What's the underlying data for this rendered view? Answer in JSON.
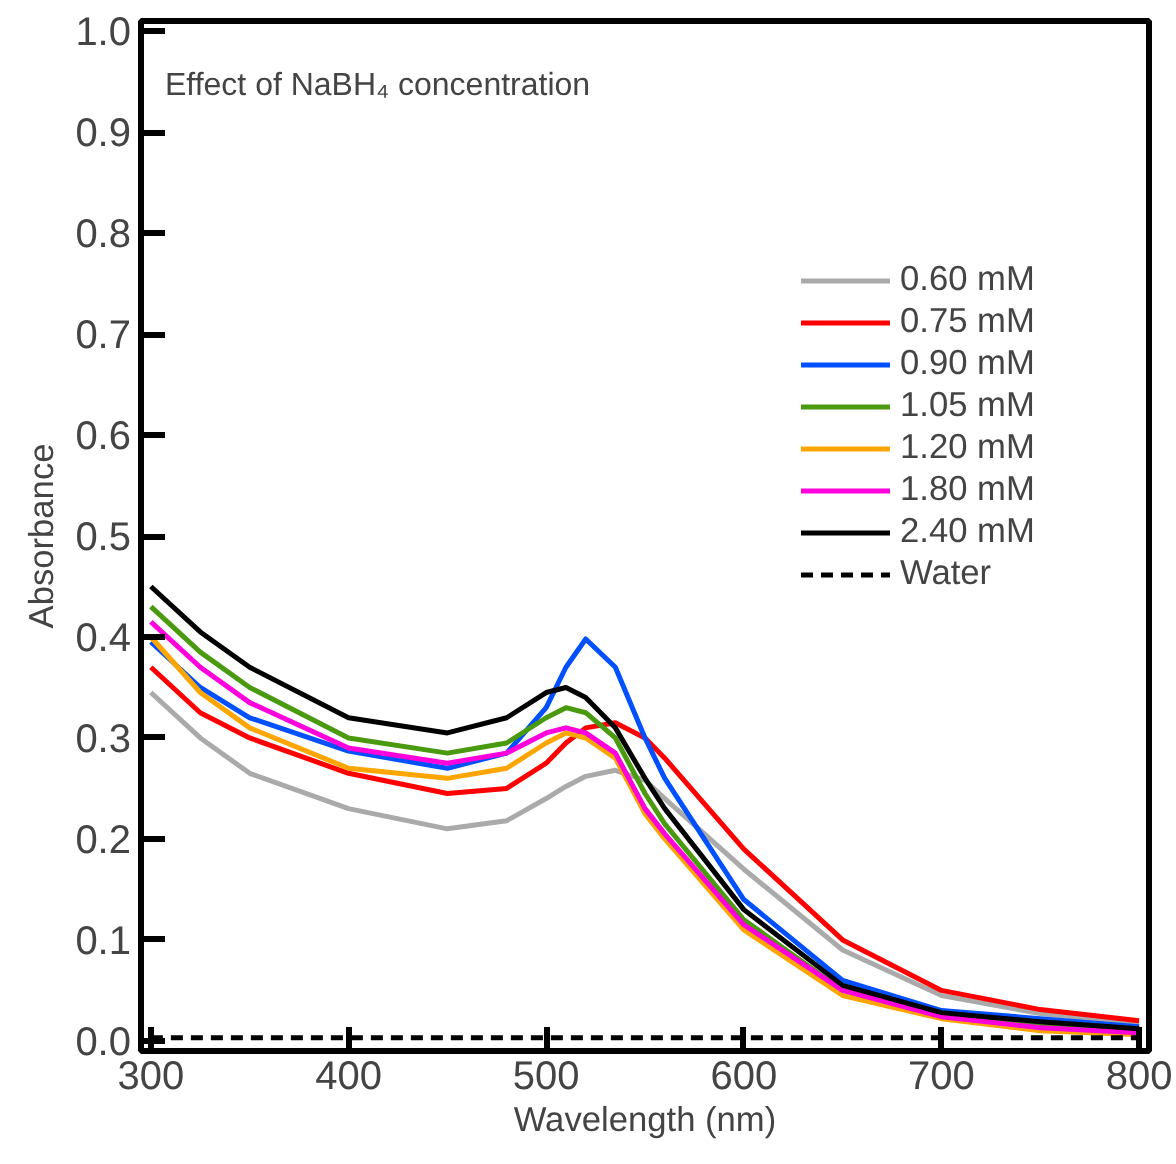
{
  "chart_data": {
    "type": "line",
    "annotations": [
      "Effect of NaBH₄ concentration"
    ],
    "xlabel": "Wavelength (nm)",
    "ylabel": "Absorbance",
    "xlim": [
      295,
      805
    ],
    "ylim": [
      -0.01,
      1.01
    ],
    "xticks": [
      300,
      400,
      500,
      600,
      700,
      800
    ],
    "yticks": [
      {
        "value": 0,
        "label": "0.0"
      },
      0.1,
      0.2,
      0.3,
      0.4,
      0.5,
      0.6,
      0.7,
      0.8,
      0.9,
      {
        "value": 1,
        "label": "1.0"
      }
    ],
    "grid": false,
    "legend": "top right",
    "marker": "none",
    "line_style": "solid",
    "x": [
      300,
      325,
      350,
      400,
      450,
      480,
      500,
      510,
      520,
      535,
      550,
      560,
      600,
      650,
      700,
      750,
      800
    ],
    "series": [
      {
        "name": "0.60 mM",
        "color": "#aaaaaa",
        "values": [
          0.345,
          0.3,
          0.265,
          0.23,
          0.21,
          0.218,
          0.24,
          0.252,
          0.262,
          0.268,
          0.258,
          0.24,
          0.17,
          0.09,
          0.045,
          0.027,
          0.017
        ]
      },
      {
        "name": "0.75 mM",
        "color": "#ff0000",
        "values": [
          0.37,
          0.325,
          0.3,
          0.265,
          0.245,
          0.25,
          0.275,
          0.295,
          0.31,
          0.315,
          0.3,
          0.28,
          0.19,
          0.1,
          0.05,
          0.031,
          0.02
        ]
      },
      {
        "name": "0.90 mM",
        "color": "#0050ff",
        "values": [
          0.395,
          0.35,
          0.32,
          0.287,
          0.27,
          0.285,
          0.33,
          0.37,
          0.398,
          0.37,
          0.3,
          0.26,
          0.14,
          0.06,
          0.03,
          0.022,
          0.014
        ]
      },
      {
        "name": "1.05 mM",
        "color": "#4a9a10",
        "values": [
          0.43,
          0.385,
          0.35,
          0.3,
          0.285,
          0.295,
          0.32,
          0.33,
          0.325,
          0.3,
          0.245,
          0.215,
          0.12,
          0.05,
          0.025,
          0.016,
          0.01
        ]
      },
      {
        "name": "1.20 mM",
        "color": "#ffa500",
        "values": [
          0.4,
          0.345,
          0.31,
          0.27,
          0.26,
          0.27,
          0.295,
          0.305,
          0.3,
          0.28,
          0.225,
          0.2,
          0.11,
          0.045,
          0.022,
          0.01,
          0.006
        ]
      },
      {
        "name": "1.80 mM",
        "color": "#ff00dd",
        "values": [
          0.415,
          0.37,
          0.335,
          0.29,
          0.275,
          0.285,
          0.305,
          0.31,
          0.305,
          0.285,
          0.23,
          0.205,
          0.115,
          0.05,
          0.024,
          0.013,
          0.008
        ]
      },
      {
        "name": "2.40 mM",
        "color": "#000000",
        "values": [
          0.45,
          0.405,
          0.37,
          0.32,
          0.305,
          0.32,
          0.345,
          0.35,
          0.34,
          0.31,
          0.26,
          0.23,
          0.13,
          0.055,
          0.028,
          0.019,
          0.012
        ]
      },
      {
        "name": "Water",
        "color": "#000000",
        "line_style": "dashed",
        "values": [
          0.003,
          0.003,
          0.003,
          0.003,
          0.003,
          0.003,
          0.003,
          0.003,
          0.003,
          0.003,
          0.003,
          0.003,
          0.003,
          0.003,
          0.003,
          0.003,
          0.003
        ]
      }
    ]
  }
}
